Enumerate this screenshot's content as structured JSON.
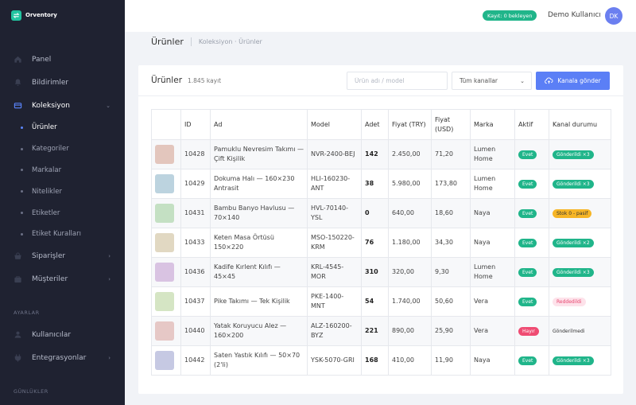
{
  "app": {
    "brand": "Orventory"
  },
  "sidebar": {
    "items": [
      {
        "label": "Panel",
        "icon": "home-icon"
      },
      {
        "label": "Bildirimler",
        "icon": "bell-icon"
      },
      {
        "label": "Koleksiyon",
        "icon": "box-icon",
        "open": true
      }
    ],
    "collection_sub": [
      {
        "label": "Ürünler",
        "active": true
      },
      {
        "label": "Kategoriler"
      },
      {
        "label": "Markalar"
      },
      {
        "label": "Nitelikler"
      },
      {
        "label": "Etiketler"
      },
      {
        "label": "Etiket Kuralları"
      }
    ],
    "items2": [
      {
        "label": "Siparişler",
        "icon": "cart-icon"
      },
      {
        "label": "Müşteriler",
        "icon": "users-icon"
      }
    ],
    "settings_label": "AYARLAR",
    "settings_items": [
      {
        "label": "Kullanıcılar",
        "icon": "user-icon"
      },
      {
        "label": "Entegrasyonlar",
        "icon": "plug-icon"
      }
    ],
    "logs_label": "GÜNLÜKLER"
  },
  "header": {
    "sync_badge": "Kayıt: 0 bekleyen",
    "user_name": "Demo Kullanıcı",
    "avatar_initials": "DK"
  },
  "page": {
    "title": "Ürünler",
    "breadcrumb": "Koleksiyon · Ürünler"
  },
  "card": {
    "title": "Ürünler",
    "count": "1.845 kayıt",
    "search_placeholder": "Ürün adı / model",
    "channel_select": "Tüm kanallar",
    "send_button": "Kanala gönder"
  },
  "table": {
    "columns": [
      "",
      "ID",
      "Ad",
      "Model",
      "Adet",
      "Fiyat (TRY)",
      "Fiyat (USD)",
      "Marka",
      "Aktif",
      "Kanal durumu"
    ],
    "rows": [
      {
        "thumb": "#e3c6bd",
        "id": "10428",
        "name": "Pamuklu Nevresim Takımı — Çift Kişilik",
        "model": "NVR-2400-BEJ",
        "qty": "142",
        "try": "2.450,00",
        "usd": "71,20",
        "brand": "Lumen Home",
        "active": "Evet",
        "active_color": "green",
        "channel": "Gönderildi ×3",
        "channel_color": "green"
      },
      {
        "thumb": "#bcd3df",
        "id": "10429",
        "name": "Dokuma Halı — 160×230 Antrasit",
        "model": "HLI-160230-ANT",
        "qty": "38",
        "try": "5.980,00",
        "usd": "173,80",
        "brand": "Lumen Home",
        "active": "Evet",
        "active_color": "green",
        "channel": "Gönderildi ×3",
        "channel_color": "green"
      },
      {
        "thumb": "#c4e0c3",
        "id": "10431",
        "name": "Bambu Banyo Havlusu — 70×140",
        "model": "HVL-70140-YSL",
        "qty": "0",
        "try": "640,00",
        "usd": "18,60",
        "brand": "Naya",
        "active": "Evet",
        "active_color": "green",
        "channel": "Stok 0 - pasif",
        "channel_color": "yellow"
      },
      {
        "thumb": "#e1d8c2",
        "id": "10433",
        "name": "Keten Masa Örtüsü 150×220",
        "model": "MSO-150220-KRM",
        "qty": "76",
        "try": "1.180,00",
        "usd": "34,30",
        "brand": "Naya",
        "active": "Evet",
        "active_color": "green",
        "channel": "Gönderildi ×2",
        "channel_color": "green"
      },
      {
        "thumb": "#d9c3e2",
        "id": "10436",
        "name": "Kadife Kırlent Kılıfı — 45×45",
        "model": "KRL-4545-MOR",
        "qty": "310",
        "try": "320,00",
        "usd": "9,30",
        "brand": "Lumen Home",
        "active": "Evet",
        "active_color": "green",
        "channel": "Gönderildi ×3",
        "channel_color": "green"
      },
      {
        "thumb": "#d5e5c4",
        "id": "10437",
        "name": "Pike Takımı — Tek Kişilik",
        "model": "PKE-1400-MNT",
        "qty": "54",
        "try": "1.740,00",
        "usd": "50,60",
        "brand": "Vera",
        "active": "Evet",
        "active_color": "green",
        "channel": "Reddedildi",
        "channel_color": "pink"
      },
      {
        "thumb": "#e6c8c6",
        "id": "10440",
        "name": "Yatak Koruyucu Alez — 160×200",
        "model": "ALZ-160200-BYZ",
        "qty": "221",
        "try": "890,00",
        "usd": "25,90",
        "brand": "Vera",
        "active": "Hayır",
        "active_color": "red",
        "channel": "Gönderilmedi",
        "channel_color": "plain"
      },
      {
        "thumb": "#c6c9e3",
        "id": "10442",
        "name": "Saten Yastık Kılıfı — 50×70 (2'li)",
        "model": "YSK-5070-GRI",
        "qty": "168",
        "try": "410,00",
        "usd": "11,90",
        "brand": "Naya",
        "active": "Evet",
        "active_color": "green",
        "channel": "Gönderildi ×3",
        "channel_color": "green"
      }
    ]
  }
}
